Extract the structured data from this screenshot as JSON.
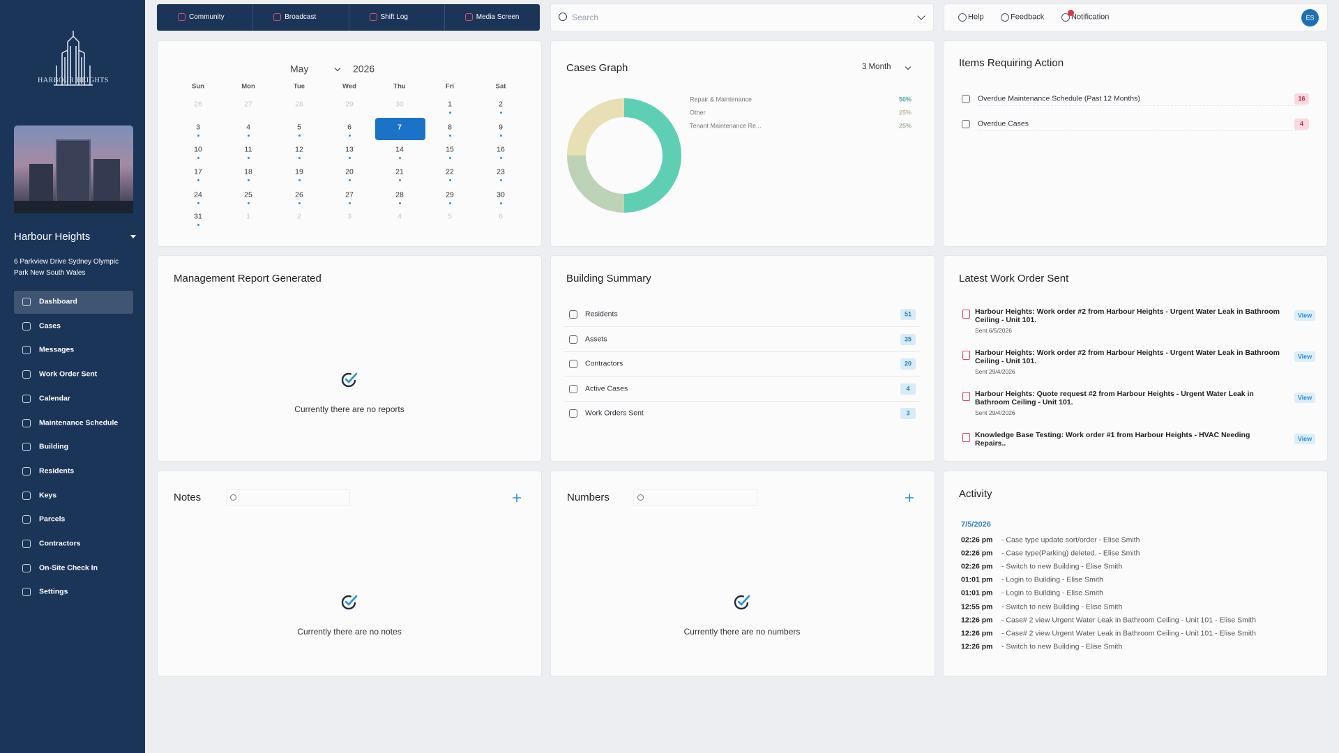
{
  "sidebar": {
    "logo_text": "HARBOUR HEIGHTS",
    "building_name": "Harbour Heights",
    "address": "6 Parkview Drive Sydney Olympic Park New South Wales",
    "menu": [
      "Dashboard",
      "Cases",
      "Messages",
      "Work Order Sent",
      "Calendar",
      "Maintenance Schedule",
      "Building",
      "Residents",
      "Keys",
      "Parcels",
      "Contractors",
      "On-Site Check In",
      "Settings"
    ],
    "active_index": 0
  },
  "top_nav": [
    "Community",
    "Broadcast",
    "Shift Log",
    "Media Screen"
  ],
  "search": {
    "placeholder": "Search"
  },
  "header_actions": [
    "Help",
    "Feedback",
    "Notification"
  ],
  "user_initials": "ES",
  "calendar": {
    "month": "May",
    "year": "2026",
    "weekdays": [
      "Sun",
      "Mon",
      "Tue",
      "Wed",
      "Thu",
      "Fri",
      "Sat"
    ],
    "weeks": [
      [
        26,
        27,
        28,
        29,
        30,
        1,
        2
      ],
      [
        3,
        4,
        5,
        6,
        7,
        8,
        9
      ],
      [
        10,
        11,
        12,
        13,
        14,
        15,
        16
      ],
      [
        17,
        18,
        19,
        20,
        21,
        22,
        23
      ],
      [
        24,
        25,
        26,
        27,
        28,
        29,
        30
      ],
      [
        31,
        1,
        2,
        3,
        4,
        5,
        6
      ]
    ],
    "selected_day": 7
  },
  "cases_graph": {
    "type": "pie",
    "title": "Cases Graph",
    "period": "3 Month",
    "categories": [
      "Repair & Maintenance",
      "Other",
      "Tenant Maintenance Re..."
    ],
    "values": [
      50,
      25,
      25
    ],
    "value_labels": [
      "50%",
      "25%",
      "25%"
    ],
    "colors": [
      "#5fcfb3",
      "#e8dfb4",
      "#bcd3b6"
    ]
  },
  "items_requiring_action": {
    "title": "Items Requiring Action",
    "items": [
      {
        "label": "Overdue Maintenance Schedule (Past 12 Months)",
        "count": 16
      },
      {
        "label": "Overdue Cases",
        "count": 4
      }
    ]
  },
  "management_report": {
    "title": "Management Report Generated",
    "empty": "Currently there are no reports"
  },
  "building_summary": {
    "title": "Building Summary",
    "items": [
      {
        "label": "Residents",
        "count": 51
      },
      {
        "label": "Assets",
        "count": 35
      },
      {
        "label": "Contractors",
        "count": 20
      },
      {
        "label": "Active Cases",
        "count": 4
      },
      {
        "label": "Work Orders Sent",
        "count": 3
      }
    ]
  },
  "latest_work_order": {
    "title": "Latest Work Order Sent",
    "items": [
      {
        "title": "Harbour Heights: Work order #2 from Harbour Heights - Urgent Water Leak in Bathroom Ceiling - Unit 101.",
        "sent": "Sent 6/5/2026",
        "action": "View"
      },
      {
        "title": "Harbour Heights: Work order #2 from Harbour Heights - Urgent Water Leak in Bathroom Ceiling - Unit 101.",
        "sent": "Sent 29/4/2026",
        "action": "View"
      },
      {
        "title": "Harbour Heights: Quote request #2 from Harbour Heights - Urgent Water Leak in Bathroom Ceiling - Unit 101.",
        "sent": "Sent 29/4/2026",
        "action": "View"
      },
      {
        "title": "Knowledge Base Testing: Work order #1 from Harbour Heights - HVAC Needing Repairs..",
        "action": "View"
      }
    ]
  },
  "notes": {
    "title": "Notes",
    "empty": "Currently there are no notes"
  },
  "numbers": {
    "title": "Numbers",
    "empty": "Currently there are no numbers"
  },
  "activity": {
    "title": "Activity",
    "date": "7/5/2026",
    "entries": [
      {
        "time": "02:26 pm",
        "text": "- Case type update sort/order - Elise Smith"
      },
      {
        "time": "02:26 pm",
        "text": "- Case type(Parking) deleted. - Elise Smith"
      },
      {
        "time": "02:26 pm",
        "text": "- Switch to new Building - Elise Smith"
      },
      {
        "time": "01:01 pm",
        "text": "- Login to Building - Elise Smith"
      },
      {
        "time": "01:01 pm",
        "text": "- Login to Building - Elise Smith"
      },
      {
        "time": "12:55 pm",
        "text": "- Switch to new Building - Elise Smith"
      },
      {
        "time": "12:26 pm",
        "text": "- Case# 2 view Urgent Water Leak in Bathroom Ceiling - Unit 101 - Elise Smith"
      },
      {
        "time": "12:26 pm",
        "text": "- Case# 2 view Urgent Water Leak in Bathroom Ceiling - Unit 101 - Elise Smith"
      },
      {
        "time": "12:26 pm",
        "text": "- Switch to new Building - Elise Smith"
      }
    ]
  }
}
